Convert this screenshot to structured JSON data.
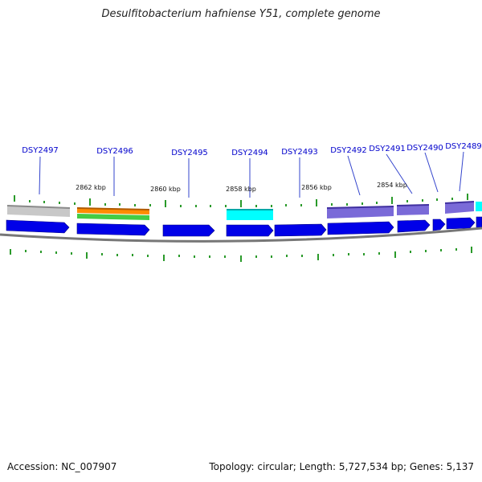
{
  "title": "Desulfitobacterium hafniense Y51, complete genome",
  "footer": {
    "accession": "Accession: NC_007907",
    "stats": "Topology: circular; Length: 5,727,534 bp; Genes: 5,137"
  },
  "colors": {
    "gene_label": "#0000cc",
    "leader_line": "#3344cc",
    "cds_arrow": "#0000e8",
    "tick": "#2a9a2a",
    "backbone": "#777777",
    "cog_gray": "#c8c8c8",
    "cog_orange": "#ff8c00",
    "cog_green": "#44cc44",
    "cog_cyan": "#00ffff",
    "cog_purple": "#7a6ad8"
  },
  "scale_labels": [
    "2862 kbp",
    "2860 kbp",
    "2858 kbp",
    "2856 kbp",
    "2854 kbp"
  ],
  "genes": [
    "DSY2497",
    "DSY2496",
    "DSY2495",
    "DSY2494",
    "DSY2493",
    "DSY2492",
    "DSY2491",
    "DSY2490",
    "DSY2489"
  ]
}
